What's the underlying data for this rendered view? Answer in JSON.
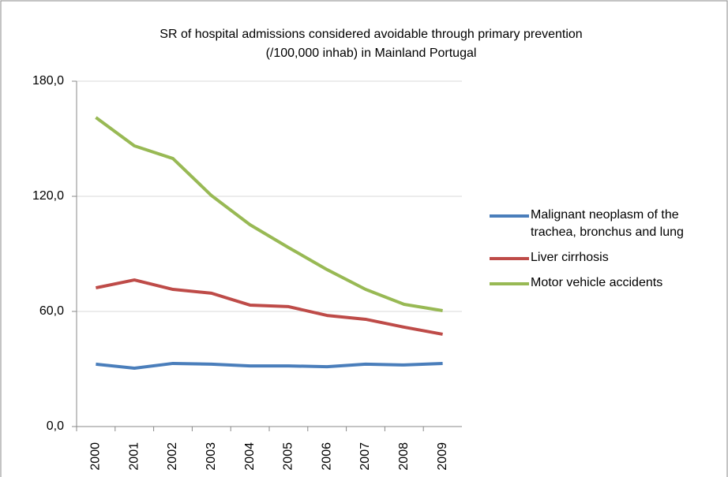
{
  "chart_data": {
    "type": "line",
    "title": [
      "SR of hospital admissions considered avoidable through primary prevention",
      "(/100,000 inhab) in Mainland Portugal"
    ],
    "categories": [
      "2000",
      "2001",
      "2002",
      "2003",
      "2004",
      "2005",
      "2006",
      "2007",
      "2008",
      "2009"
    ],
    "series": [
      {
        "name": "Malignant neoplasm of the trachea, bronchus and lung",
        "color": "#4a7ebb",
        "values": [
          32.5,
          30.4,
          32.9,
          32.5,
          31.6,
          31.6,
          31.2,
          32.5,
          32.1,
          32.9
        ]
      },
      {
        "name": "Liver cirrhosis",
        "color": "#be4b48",
        "values": [
          72.3,
          76.4,
          71.5,
          69.5,
          63.3,
          62.5,
          57.9,
          55.9,
          51.8,
          48.1
        ]
      },
      {
        "name": "Motor vehicle accidents",
        "color": "#98b954",
        "values": [
          161.1,
          146.3,
          139.7,
          120.4,
          105.2,
          93.3,
          81.8,
          71.5,
          63.7,
          60.4
        ]
      }
    ],
    "ylim": [
      0,
      180
    ],
    "yticks": [
      {
        "value": 0,
        "label": "0,0"
      },
      {
        "value": 60,
        "label": "60,0"
      },
      {
        "value": 120,
        "label": "120,0"
      },
      {
        "value": 180,
        "label": "180,0"
      }
    ],
    "grid": true,
    "legend": "right"
  }
}
